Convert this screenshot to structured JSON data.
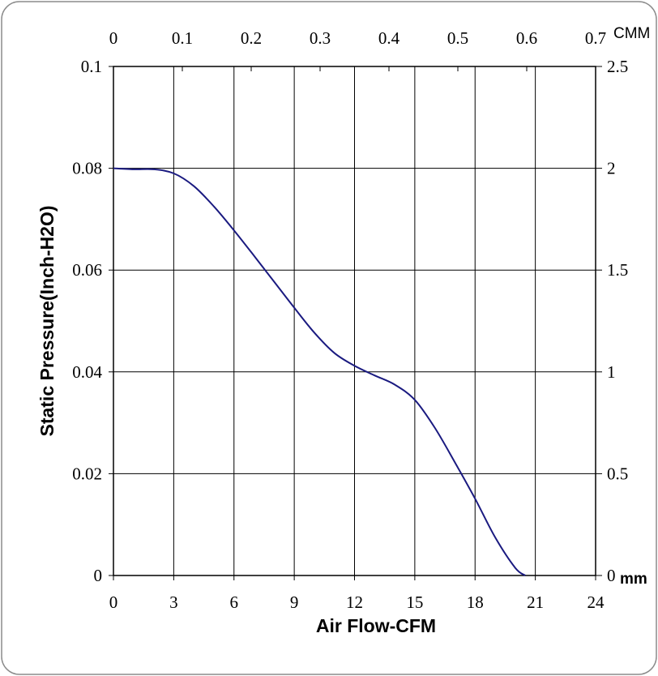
{
  "chart_data": {
    "type": "line",
    "title": "",
    "xlabel": "Air Flow-CFM",
    "ylabel": "Static Pressure(Inch-H2O)",
    "xlim": [
      0,
      24
    ],
    "ylim": [
      0,
      0.1
    ],
    "x_ticks": [
      0,
      3,
      6,
      9,
      12,
      15,
      18,
      21,
      24
    ],
    "x_tick_labels": [
      "0",
      "3",
      "6",
      "9",
      "12",
      "15",
      "18",
      "21",
      "24"
    ],
    "y_ticks": [
      0,
      0.02,
      0.04,
      0.06,
      0.08,
      0.1
    ],
    "y_tick_labels": [
      "0",
      "0.02",
      "0.04",
      "0.06",
      "0.08",
      "0.1"
    ],
    "top_axis": {
      "unit_label": "CMM",
      "lim": [
        0,
        0.7
      ],
      "ticks": [
        0,
        0.1,
        0.2,
        0.3,
        0.4,
        0.5,
        0.6,
        0.7
      ],
      "tick_labels": [
        "0",
        "0.1",
        "0.2",
        "0.3",
        "0.4",
        "0.5",
        "0.6",
        "0.7"
      ]
    },
    "right_axis": {
      "unit_label": "mm",
      "lim": [
        0,
        2.5
      ],
      "ticks": [
        0,
        0.5,
        1,
        1.5,
        2,
        2.5
      ],
      "tick_labels": [
        "0",
        "0.5",
        "1",
        "1.5",
        "2",
        "2.5"
      ]
    },
    "grid": true,
    "series": [
      {
        "color": "#1a1a80",
        "x": [
          0,
          1,
          2,
          3,
          4,
          5,
          6,
          7,
          8,
          9,
          10,
          11,
          12,
          13,
          14,
          15,
          16,
          17,
          18,
          19,
          20,
          20.5
        ],
        "y": [
          0.08,
          0.0798,
          0.0798,
          0.079,
          0.0765,
          0.0725,
          0.0678,
          0.0628,
          0.0577,
          0.0526,
          0.0477,
          0.0437,
          0.0412,
          0.0393,
          0.0375,
          0.0345,
          0.029,
          0.0222,
          0.0151,
          0.0075,
          0.0015,
          0
        ]
      }
    ]
  }
}
